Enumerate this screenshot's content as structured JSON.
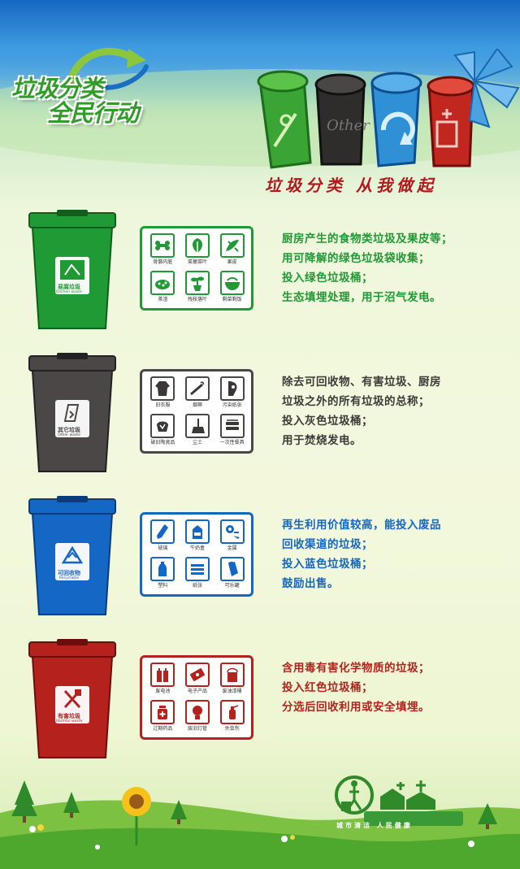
{
  "logo": {
    "line1": "垃圾分类",
    "line2": "全民行动"
  },
  "slogan": "垃圾分类 从我做起",
  "colors": {
    "green": "#1f9a34",
    "gray": "#4a4746",
    "blue": "#1467c4",
    "red": "#b5221d"
  },
  "rows": [
    {
      "key": "kitchen",
      "bin_label": "易腐垃圾",
      "bin_sub": "Kitchen waste",
      "items": [
        "骨骼内脏",
        "菜梗菜叶",
        "果皮",
        "茶渣",
        "残枝落叶",
        "剩菜剩饭"
      ],
      "lines": [
        "厨房产生的食物类垃圾及果皮等；",
        "用可降解的绿色垃圾袋收集；",
        "投入绿色垃圾桶；",
        "生态填埋处理，用于沼气发电。"
      ]
    },
    {
      "key": "other",
      "bin_label": "其它垃圾",
      "bin_sub": "Other waste",
      "items": [
        "旧衣服",
        "烟蒂",
        "污染纸张",
        "破旧陶瓷品",
        "尘土",
        "一次性餐具"
      ],
      "lines": [
        "除去可回收物、有害垃圾、厨房",
        "垃圾之外的所有垃圾的总称；",
        "投入灰色垃圾桶；",
        "用于焚烧发电。"
      ]
    },
    {
      "key": "recyclable",
      "bin_label": "可回收物",
      "bin_sub": "Recyclable",
      "items": [
        "玻璃",
        "牛奶盒",
        "金属",
        "塑料",
        "纸张",
        "可乐罐"
      ],
      "lines": [
        "再生利用价值较高，能投入废品",
        "回收渠道的垃圾；",
        "投入蓝色垃圾桶；",
        "鼓励出售。"
      ]
    },
    {
      "key": "harmful",
      "bin_label": "有害垃圾",
      "bin_sub": "Harmful waste",
      "items": [
        "废电池",
        "电子产品",
        "废油漆桶",
        "过期药品",
        "废旧灯管",
        "杀虫剂"
      ],
      "lines": [
        "含用毒有害化学物质的垃圾；",
        "投入红色垃圾桶；",
        "分选后回收利用或安全填埋。"
      ]
    }
  ],
  "footer": {
    "brand": "城市清洁 人民健康"
  }
}
